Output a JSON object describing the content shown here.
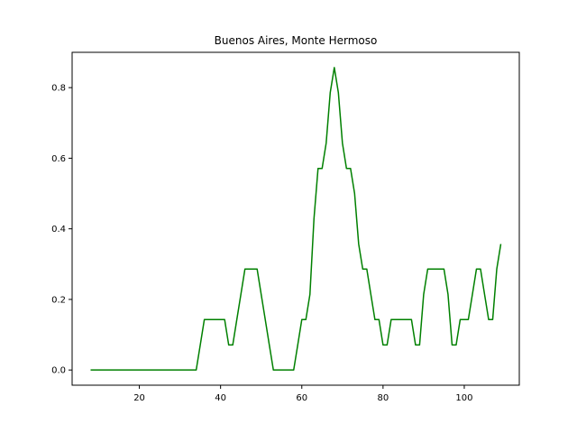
{
  "chart_data": {
    "type": "line",
    "title": "Buenos Aires, Monte Hermoso",
    "xlabel": "",
    "ylabel": "",
    "xlim": [
      3.45,
      113.55
    ],
    "ylim": [
      -0.043,
      0.9
    ],
    "xticks": [
      20,
      40,
      60,
      80,
      100
    ],
    "yticks": [
      0.0,
      0.2,
      0.4,
      0.6,
      0.8
    ],
    "ytick_labels": [
      "0.0",
      "0.2",
      "0.4",
      "0.6",
      "0.8"
    ],
    "grid": false,
    "series": [
      {
        "color": "#008000",
        "x": [
          8,
          9,
          10,
          11,
          12,
          13,
          14,
          15,
          16,
          17,
          18,
          19,
          20,
          21,
          22,
          23,
          24,
          25,
          26,
          27,
          28,
          29,
          30,
          31,
          32,
          33,
          34,
          35,
          36,
          37,
          38,
          39,
          40,
          41,
          42,
          43,
          44,
          45,
          46,
          47,
          48,
          49,
          50,
          51,
          52,
          53,
          54,
          55,
          56,
          57,
          58,
          59,
          60,
          61,
          62,
          63,
          64,
          65,
          66,
          67,
          68,
          69,
          70,
          71,
          72,
          73,
          74,
          75,
          76,
          77,
          78,
          79,
          80,
          81,
          82,
          83,
          84,
          85,
          86,
          87,
          88,
          89,
          90,
          91,
          92,
          93,
          94,
          95,
          96,
          97,
          98,
          99,
          100,
          101,
          102,
          103,
          104,
          105,
          106,
          107,
          108,
          109
        ],
        "y": [
          0,
          0,
          0,
          0,
          0,
          0,
          0,
          0,
          0,
          0,
          0,
          0,
          0,
          0,
          0,
          0,
          0,
          0,
          0,
          0,
          0,
          0,
          0,
          0,
          0,
          0,
          0,
          0.071,
          0.143,
          0.143,
          0.143,
          0.143,
          0.143,
          0.143,
          0.071,
          0.071,
          0.143,
          0.214,
          0.286,
          0.286,
          0.286,
          0.286,
          0.214,
          0.143,
          0.071,
          0,
          0,
          0,
          0,
          0,
          0,
          0.071,
          0.143,
          0.143,
          0.214,
          0.429,
          0.571,
          0.571,
          0.643,
          0.786,
          0.857,
          0.786,
          0.643,
          0.571,
          0.571,
          0.5,
          0.357,
          0.286,
          0.286,
          0.214,
          0.143,
          0.143,
          0.071,
          0.071,
          0.143,
          0.143,
          0.143,
          0.143,
          0.143,
          0.143,
          0.071,
          0.071,
          0.214,
          0.286,
          0.286,
          0.286,
          0.286,
          0.286,
          0.214,
          0.071,
          0.071,
          0.143,
          0.143,
          0.143,
          0.214,
          0.286,
          0.286,
          0.214,
          0.143,
          0.143,
          0.286,
          0.357
        ]
      }
    ]
  }
}
